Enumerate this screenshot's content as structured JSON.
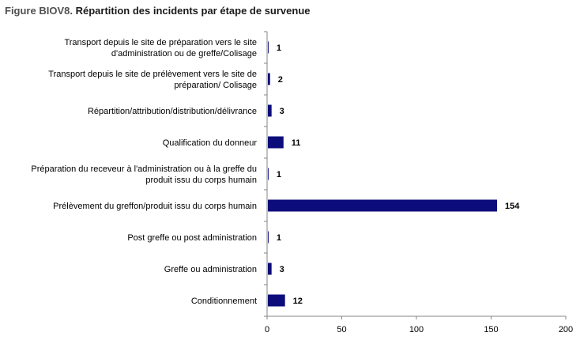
{
  "figure": {
    "prefix": "Figure BIOV8.",
    "title": "Répartition des incidents par étape de survenue"
  },
  "chart_data": {
    "type": "bar",
    "orientation": "horizontal",
    "categories": [
      [
        "Transport depuis le site de préparation vers le site",
        "d'administration ou de greffe/Colisage"
      ],
      [
        "Transport depuis le site de prélèvement  vers le site de",
        "préparation/ Colisage"
      ],
      [
        "Répartition/attribution/distribution/délivrance"
      ],
      [
        "Qualification du donneur"
      ],
      [
        "Préparation du receveur à l'administration ou à la greffe du",
        "produit issu du corps humain"
      ],
      [
        "Prélèvement du greffon/produit issu du corps humain"
      ],
      [
        "Post greffe ou post administration"
      ],
      [
        "Greffe ou administration"
      ],
      [
        "Conditionnement"
      ]
    ],
    "values": [
      1,
      2,
      3,
      11,
      1,
      154,
      1,
      3,
      12
    ],
    "xlim": [
      0,
      200
    ],
    "xticks": [
      0,
      50,
      100,
      150,
      200
    ],
    "bar_color": "#0c0c7a",
    "data_labels": true,
    "grid": false,
    "legend": "none"
  }
}
